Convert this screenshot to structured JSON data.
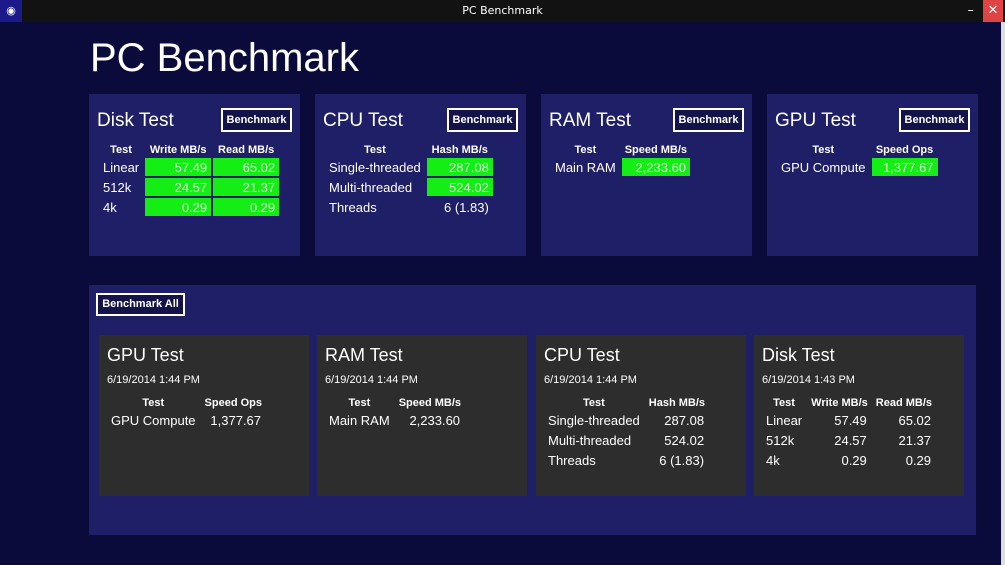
{
  "window": {
    "title": "PC Benchmark",
    "minimize": "–",
    "close": "✕",
    "icon": "eye-icon"
  },
  "page_title": "PC Benchmark",
  "benchmark_label": "Benchmark",
  "benchmark_all_label": "Benchmark All",
  "colors": {
    "background": "#0b0b3b",
    "panel": "#1f1f68",
    "result_card": "#2d2d2d",
    "highlight": "#14ee14"
  },
  "tests": [
    {
      "title": "Disk Test",
      "headers": [
        "Test",
        "Write MB/s",
        "Read MB/s"
      ],
      "rows": [
        [
          "Linear",
          "57.49",
          "65.02"
        ],
        [
          "512k",
          "24.57",
          "21.37"
        ],
        [
          "4k",
          "0.29",
          "0.29"
        ]
      ]
    },
    {
      "title": "CPU Test",
      "headers": [
        "Test",
        "Hash MB/s"
      ],
      "rows": [
        [
          "Single-threaded",
          "287.08"
        ],
        [
          "Multi-threaded",
          "524.02"
        ],
        [
          "Threads",
          "6 (1.83)"
        ]
      ]
    },
    {
      "title": "RAM Test",
      "headers": [
        "Test",
        "Speed MB/s"
      ],
      "rows": [
        [
          "Main RAM",
          "2,233.60"
        ]
      ]
    },
    {
      "title": "GPU Test",
      "headers": [
        "Test",
        "Speed Ops"
      ],
      "rows": [
        [
          "GPU Compute",
          "1,377.67"
        ]
      ]
    }
  ],
  "results": [
    {
      "title": "GPU Test",
      "date": "6/19/2014 1:44 PM",
      "headers": [
        "Test",
        "Speed Ops"
      ],
      "rows": [
        [
          "GPU Compute",
          "1,377.67"
        ]
      ]
    },
    {
      "title": "RAM Test",
      "date": "6/19/2014 1:44 PM",
      "headers": [
        "Test",
        "Speed MB/s"
      ],
      "rows": [
        [
          "Main RAM",
          "2,233.60"
        ]
      ]
    },
    {
      "title": "CPU Test",
      "date": "6/19/2014 1:44 PM",
      "headers": [
        "Test",
        "Hash MB/s"
      ],
      "rows": [
        [
          "Single-threaded",
          "287.08"
        ],
        [
          "Multi-threaded",
          "524.02"
        ],
        [
          "Threads",
          "6 (1.83)"
        ]
      ]
    },
    {
      "title": "Disk Test",
      "date": "6/19/2014 1:43 PM",
      "headers": [
        "Test",
        "Write MB/s",
        "Read MB/s"
      ],
      "rows": [
        [
          "Linear",
          "57.49",
          "65.02"
        ],
        [
          "512k",
          "24.57",
          "21.37"
        ],
        [
          "4k",
          "0.29",
          "0.29"
        ]
      ]
    }
  ]
}
